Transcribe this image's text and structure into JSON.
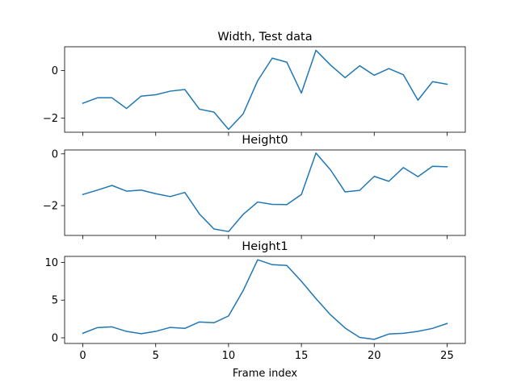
{
  "chart_data": [
    {
      "type": "line",
      "title": "Width, Test data",
      "xlabel": "",
      "ylabel": "",
      "x": [
        0,
        1,
        2,
        3,
        4,
        5,
        6,
        7,
        8,
        9,
        10,
        11,
        12,
        13,
        14,
        15,
        16,
        17,
        18,
        19,
        20,
        21,
        22,
        23,
        24,
        25
      ],
      "series": [
        {
          "values": [
            -1.38,
            -1.15,
            -1.15,
            -1.6,
            -1.08,
            -1.02,
            -0.87,
            -0.8,
            -1.63,
            -1.75,
            -2.48,
            -1.83,
            -0.43,
            0.52,
            0.35,
            -0.95,
            0.85,
            0.23,
            -0.3,
            0.2,
            -0.2,
            0.08,
            -0.18,
            -1.25,
            -0.47,
            -0.58
          ],
          "color": "#1f77b4"
        }
      ],
      "xlim": [
        -1.25,
        26.25
      ],
      "ylim": [
        -2.6,
        1.0
      ],
      "xticks": [
        0,
        5,
        10,
        15,
        20,
        25
      ],
      "yticks": [
        0,
        -2
      ],
      "show_xtick_labels": false,
      "grid": false
    },
    {
      "type": "line",
      "title": "Height0",
      "xlabel": "",
      "ylabel": "",
      "x": [
        0,
        1,
        2,
        3,
        4,
        5,
        6,
        7,
        8,
        9,
        10,
        11,
        12,
        13,
        14,
        15,
        16,
        17,
        18,
        19,
        20,
        21,
        22,
        23,
        24,
        25
      ],
      "series": [
        {
          "values": [
            -1.57,
            -1.4,
            -1.22,
            -1.44,
            -1.4,
            -1.54,
            -1.65,
            -1.49,
            -2.32,
            -2.9,
            -3.0,
            -2.34,
            -1.86,
            -1.95,
            -1.96,
            -1.57,
            0.03,
            -0.62,
            -1.47,
            -1.41,
            -0.87,
            -1.06,
            -0.53,
            -0.88,
            -0.48,
            -0.5
          ],
          "color": "#1f77b4"
        }
      ],
      "xlim": [
        -1.25,
        26.25
      ],
      "ylim": [
        -3.15,
        0.15
      ],
      "xticks": [
        0,
        5,
        10,
        15,
        20,
        25
      ],
      "yticks": [
        0,
        -2
      ],
      "show_xtick_labels": false,
      "grid": false
    },
    {
      "type": "line",
      "title": "Height1",
      "xlabel": "Frame index",
      "ylabel": "",
      "x": [
        0,
        1,
        2,
        3,
        4,
        5,
        6,
        7,
        8,
        9,
        10,
        11,
        12,
        13,
        14,
        15,
        16,
        17,
        18,
        19,
        20,
        21,
        22,
        23,
        24,
        25
      ],
      "series": [
        {
          "values": [
            0.6,
            1.35,
            1.45,
            0.85,
            0.55,
            0.85,
            1.38,
            1.25,
            2.1,
            2.0,
            2.9,
            6.25,
            10.35,
            9.7,
            9.6,
            7.5,
            5.2,
            3.05,
            1.3,
            0.05,
            -0.2,
            0.5,
            0.6,
            0.85,
            1.25,
            1.9
          ],
          "color": "#1f77b4"
        }
      ],
      "xlim": [
        -1.25,
        26.25
      ],
      "ylim": [
        -0.75,
        10.8
      ],
      "xticks": [
        0,
        5,
        10,
        15,
        20,
        25
      ],
      "yticks": [
        0,
        5,
        10
      ],
      "show_xtick_labels": true,
      "grid": false
    }
  ]
}
